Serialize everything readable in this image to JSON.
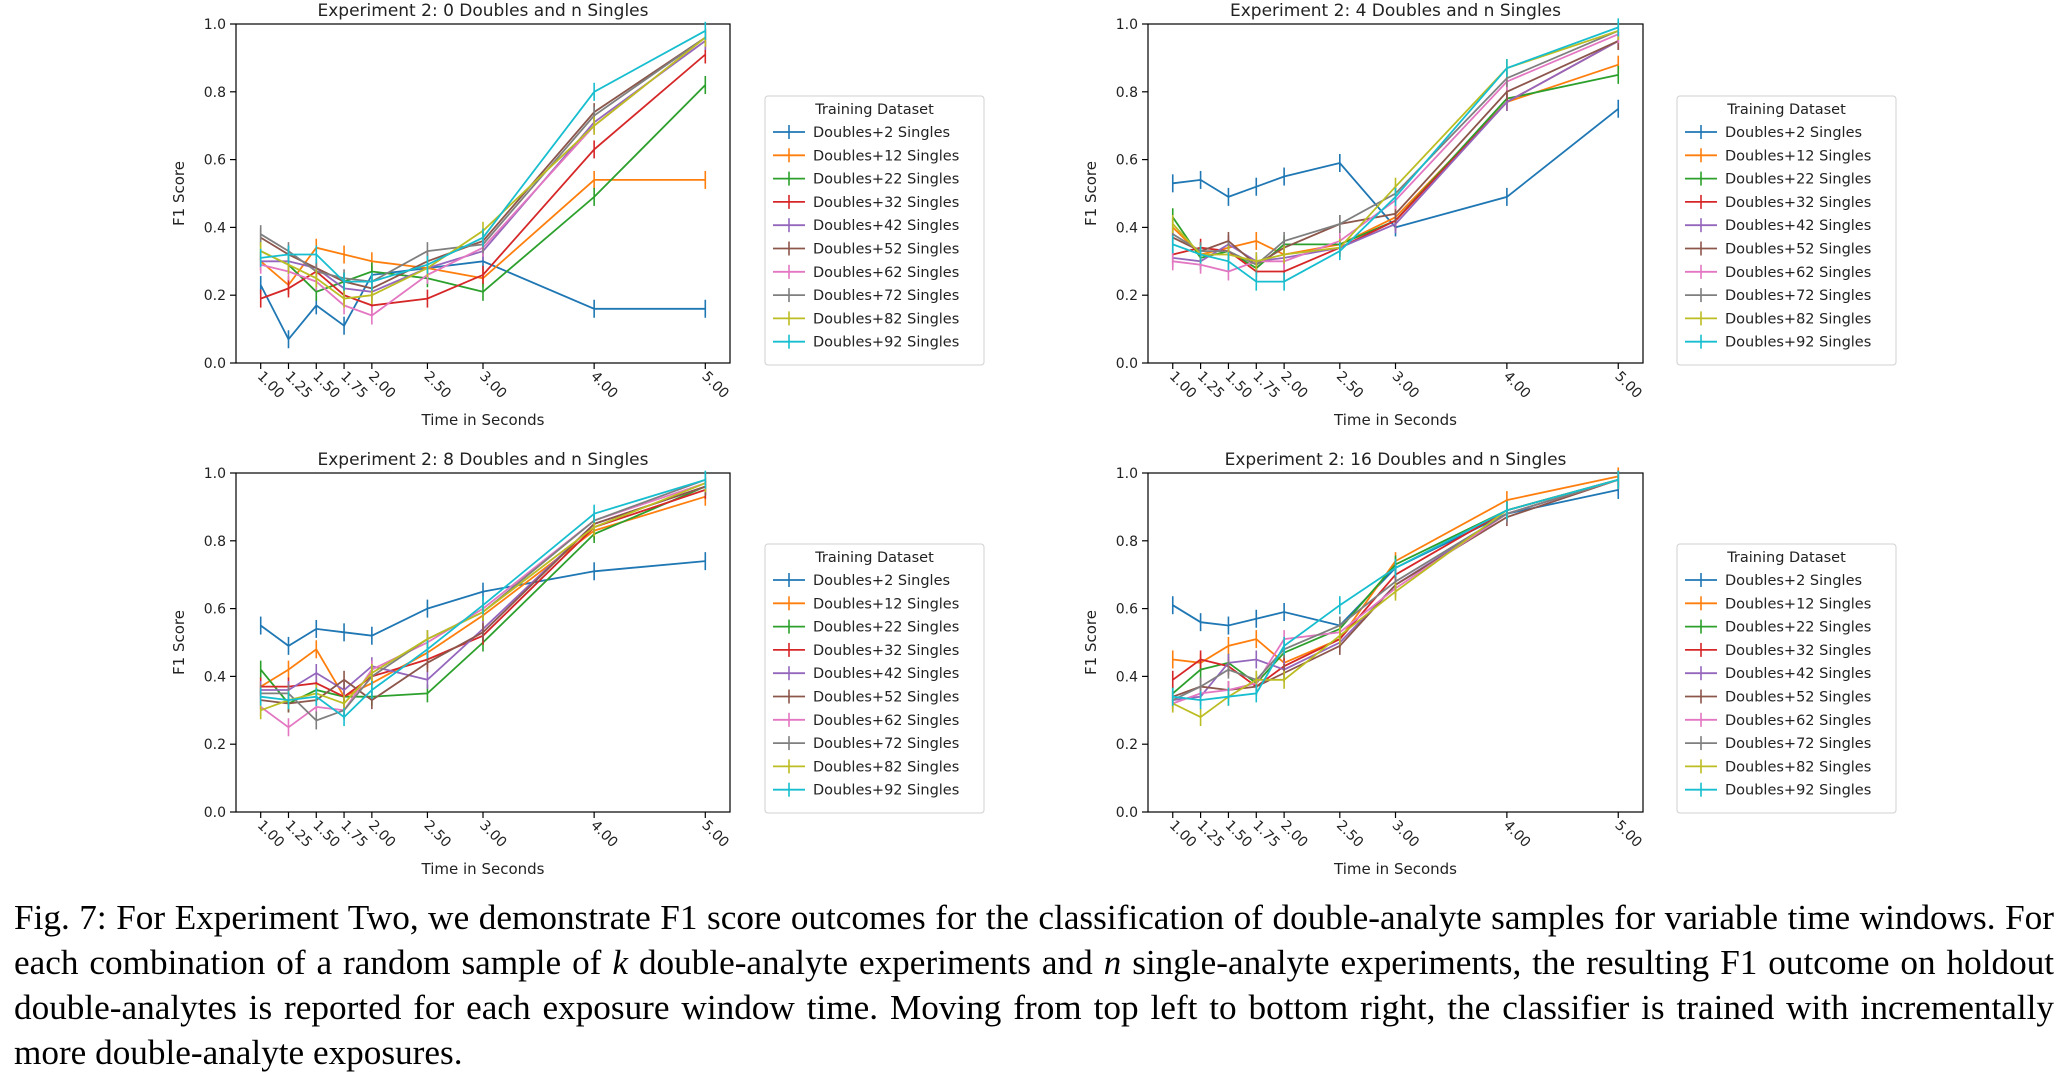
{
  "figure": {
    "caption_prefix": "Fig. 7: For Experiment Two, we demonstrate F1 score outcomes for the classification of double-analyte samples for variable time windows. For each combination of a random sample of",
    "caption_k": "k",
    "caption_mid": "double-analyte experiments and",
    "caption_n": "n",
    "caption_suffix": "single-analyte experiments, the resulting F1 outcome on holdout double-analytes is reported for each exposure window time. Moving from top left to bottom right, the classifier is trained with incrementally more double-analyte exposures."
  },
  "colors": [
    "#1f77b4",
    "#ff7f0e",
    "#2ca02c",
    "#d62728",
    "#9467bd",
    "#8c564b",
    "#e377c2",
    "#7f7f7f",
    "#bcbd22",
    "#17becf"
  ],
  "chart_data": [
    {
      "type": "line",
      "title": "Experiment 2: 0 Doubles and n Singles",
      "xlabel": "Time in Seconds",
      "ylabel": "F1 Score",
      "ylim": [
        0.0,
        1.0
      ],
      "grid": false,
      "legend_title": "Training Dataset",
      "legend_position": "outside-right",
      "x": [
        1.0,
        1.25,
        1.5,
        1.75,
        2.0,
        2.5,
        3.0,
        4.0,
        5.0
      ],
      "x_tick_labels": [
        "1.00",
        "1.25",
        "1.50",
        "1.75",
        "2.00",
        "2.50",
        "3.00",
        "4.00",
        "5.00"
      ],
      "y_tick_labels": [
        "0.0",
        "0.2",
        "0.4",
        "0.6",
        "0.8",
        "1.0"
      ],
      "series": [
        {
          "name": "Doubles+2 Singles",
          "values": [
            0.23,
            0.07,
            0.17,
            0.11,
            0.26,
            0.28,
            0.3,
            0.16,
            0.16
          ]
        },
        {
          "name": "Doubles+12 Singles",
          "values": [
            0.3,
            0.23,
            0.34,
            0.32,
            0.3,
            0.28,
            0.25,
            0.54,
            0.54
          ]
        },
        {
          "name": "Doubles+22 Singles",
          "values": [
            0.33,
            0.29,
            0.21,
            0.24,
            0.27,
            0.25,
            0.21,
            0.49,
            0.82
          ]
        },
        {
          "name": "Doubles+32 Singles",
          "values": [
            0.19,
            0.22,
            0.27,
            0.2,
            0.17,
            0.19,
            0.26,
            0.63,
            0.91
          ]
        },
        {
          "name": "Doubles+42 Singles",
          "values": [
            0.3,
            0.3,
            0.28,
            0.22,
            0.21,
            0.28,
            0.33,
            0.71,
            0.95
          ]
        },
        {
          "name": "Doubles+52 Singles",
          "values": [
            0.37,
            0.32,
            0.28,
            0.24,
            0.22,
            0.3,
            0.36,
            0.74,
            0.96
          ]
        },
        {
          "name": "Doubles+62 Singles",
          "values": [
            0.29,
            0.27,
            0.24,
            0.17,
            0.14,
            0.26,
            0.34,
            0.7,
            0.96
          ]
        },
        {
          "name": "Doubles+72 Singles",
          "values": [
            0.38,
            0.33,
            0.27,
            0.25,
            0.24,
            0.33,
            0.35,
            0.73,
            0.96
          ]
        },
        {
          "name": "Doubles+82 Singles",
          "values": [
            0.33,
            0.29,
            0.25,
            0.19,
            0.2,
            0.28,
            0.39,
            0.7,
            0.96
          ]
        },
        {
          "name": "Doubles+92 Singles",
          "values": [
            0.31,
            0.32,
            0.32,
            0.24,
            0.24,
            0.29,
            0.37,
            0.8,
            0.98
          ]
        }
      ]
    },
    {
      "type": "line",
      "title": "Experiment 2: 4 Doubles and n Singles",
      "xlabel": "Time in Seconds",
      "ylabel": "F1 Score",
      "ylim": [
        0.0,
        1.0
      ],
      "grid": false,
      "legend_title": "Training Dataset",
      "legend_position": "outside-right",
      "x": [
        1.0,
        1.25,
        1.5,
        1.75,
        2.0,
        2.5,
        3.0,
        4.0,
        5.0
      ],
      "x_tick_labels": [
        "1.00",
        "1.25",
        "1.50",
        "1.75",
        "2.00",
        "2.50",
        "3.00",
        "4.00",
        "5.00"
      ],
      "y_tick_labels": [
        "0.0",
        "0.2",
        "0.4",
        "0.6",
        "0.8",
        "1.0"
      ],
      "series": [
        {
          "name": "Doubles+2 Singles",
          "values": [
            0.53,
            0.54,
            0.49,
            0.52,
            0.55,
            0.59,
            0.4,
            0.49,
            0.75
          ]
        },
        {
          "name": "Doubles+12 Singles",
          "values": [
            0.4,
            0.32,
            0.34,
            0.36,
            0.32,
            0.35,
            0.43,
            0.77,
            0.88
          ]
        },
        {
          "name": "Doubles+22 Singles",
          "values": [
            0.43,
            0.31,
            0.33,
            0.28,
            0.35,
            0.35,
            0.42,
            0.78,
            0.85
          ]
        },
        {
          "name": "Doubles+32 Singles",
          "values": [
            0.32,
            0.34,
            0.33,
            0.27,
            0.27,
            0.34,
            0.42,
            0.77,
            0.95
          ]
        },
        {
          "name": "Doubles+42 Singles",
          "values": [
            0.31,
            0.3,
            0.35,
            0.3,
            0.31,
            0.34,
            0.41,
            0.77,
            0.95
          ]
        },
        {
          "name": "Doubles+52 Singles",
          "values": [
            0.37,
            0.33,
            0.36,
            0.29,
            0.34,
            0.41,
            0.44,
            0.8,
            0.95
          ]
        },
        {
          "name": "Doubles+62 Singles",
          "values": [
            0.3,
            0.29,
            0.27,
            0.3,
            0.3,
            0.36,
            0.48,
            0.83,
            0.97
          ]
        },
        {
          "name": "Doubles+72 Singles",
          "values": [
            0.38,
            0.33,
            0.33,
            0.29,
            0.36,
            0.41,
            0.5,
            0.84,
            0.98
          ]
        },
        {
          "name": "Doubles+82 Singles",
          "values": [
            0.41,
            0.32,
            0.32,
            0.3,
            0.32,
            0.34,
            0.52,
            0.87,
            0.98
          ]
        },
        {
          "name": "Doubles+92 Singles",
          "values": [
            0.35,
            0.32,
            0.3,
            0.24,
            0.24,
            0.33,
            0.49,
            0.87,
            0.99
          ]
        }
      ]
    },
    {
      "type": "line",
      "title": "Experiment 2: 8 Doubles and n Singles",
      "xlabel": "Time in Seconds",
      "ylabel": "F1 Score",
      "ylim": [
        0.0,
        1.0
      ],
      "grid": false,
      "legend_title": "Training Dataset",
      "legend_position": "outside-right",
      "x": [
        1.0,
        1.25,
        1.5,
        1.75,
        2.0,
        2.5,
        3.0,
        4.0,
        5.0
      ],
      "x_tick_labels": [
        "1.00",
        "1.25",
        "1.50",
        "1.75",
        "2.00",
        "2.50",
        "3.00",
        "4.00",
        "5.00"
      ],
      "y_tick_labels": [
        "0.0",
        "0.2",
        "0.4",
        "0.6",
        "0.8",
        "1.0"
      ],
      "series": [
        {
          "name": "Doubles+2 Singles",
          "values": [
            0.55,
            0.49,
            0.54,
            0.53,
            0.52,
            0.6,
            0.65,
            0.71,
            0.74
          ]
        },
        {
          "name": "Doubles+12 Singles",
          "values": [
            0.37,
            0.42,
            0.48,
            0.34,
            0.38,
            0.47,
            0.58,
            0.83,
            0.93
          ]
        },
        {
          "name": "Doubles+22 Singles",
          "values": [
            0.42,
            0.32,
            0.36,
            0.34,
            0.34,
            0.35,
            0.5,
            0.82,
            0.96
          ]
        },
        {
          "name": "Doubles+32 Singles",
          "values": [
            0.37,
            0.37,
            0.38,
            0.34,
            0.4,
            0.45,
            0.52,
            0.84,
            0.95
          ]
        },
        {
          "name": "Doubles+42 Singles",
          "values": [
            0.36,
            0.36,
            0.41,
            0.36,
            0.43,
            0.39,
            0.54,
            0.85,
            0.96
          ]
        },
        {
          "name": "Doubles+52 Singles",
          "values": [
            0.33,
            0.32,
            0.33,
            0.39,
            0.33,
            0.44,
            0.53,
            0.85,
            0.96
          ]
        },
        {
          "name": "Doubles+62 Singles",
          "values": [
            0.31,
            0.25,
            0.31,
            0.3,
            0.42,
            0.5,
            0.6,
            0.86,
            0.97
          ]
        },
        {
          "name": "Doubles+72 Singles",
          "values": [
            0.35,
            0.35,
            0.27,
            0.3,
            0.4,
            0.51,
            0.59,
            0.86,
            0.98
          ]
        },
        {
          "name": "Doubles+82 Singles",
          "values": [
            0.3,
            0.33,
            0.35,
            0.32,
            0.41,
            0.51,
            0.59,
            0.84,
            0.97
          ]
        },
        {
          "name": "Doubles+92 Singles",
          "values": [
            0.34,
            0.33,
            0.34,
            0.28,
            0.36,
            0.48,
            0.61,
            0.88,
            0.98
          ]
        }
      ]
    },
    {
      "type": "line",
      "title": "Experiment 2: 16 Doubles and n Singles",
      "xlabel": "Time in Seconds",
      "ylabel": "F1 Score",
      "ylim": [
        0.0,
        1.0
      ],
      "grid": false,
      "legend_title": "Training Dataset",
      "legend_position": "outside-right",
      "x": [
        1.0,
        1.25,
        1.5,
        1.75,
        2.0,
        2.5,
        3.0,
        4.0,
        5.0
      ],
      "x_tick_labels": [
        "1.00",
        "1.25",
        "1.50",
        "1.75",
        "2.00",
        "2.50",
        "3.00",
        "4.00",
        "5.00"
      ],
      "y_tick_labels": [
        "0.0",
        "0.2",
        "0.4",
        "0.6",
        "0.8",
        "1.0"
      ],
      "series": [
        {
          "name": "Doubles+2 Singles",
          "values": [
            0.61,
            0.56,
            0.55,
            0.57,
            0.59,
            0.55,
            0.72,
            0.88,
            0.95
          ]
        },
        {
          "name": "Doubles+12 Singles",
          "values": [
            0.45,
            0.44,
            0.49,
            0.51,
            0.44,
            0.51,
            0.74,
            0.92,
            0.99
          ]
        },
        {
          "name": "Doubles+22 Singles",
          "values": [
            0.35,
            0.42,
            0.44,
            0.38,
            0.47,
            0.54,
            0.73,
            0.89,
            0.98
          ]
        },
        {
          "name": "Doubles+32 Singles",
          "values": [
            0.39,
            0.45,
            0.43,
            0.37,
            0.43,
            0.51,
            0.7,
            0.89,
            0.98
          ]
        },
        {
          "name": "Doubles+42 Singles",
          "values": [
            0.33,
            0.34,
            0.44,
            0.45,
            0.42,
            0.5,
            0.67,
            0.88,
            0.98
          ]
        },
        {
          "name": "Doubles+52 Singles",
          "values": [
            0.34,
            0.37,
            0.36,
            0.37,
            0.41,
            0.49,
            0.67,
            0.87,
            0.98
          ]
        },
        {
          "name": "Doubles+62 Singles",
          "values": [
            0.32,
            0.35,
            0.36,
            0.38,
            0.51,
            0.53,
            0.66,
            0.88,
            0.98
          ]
        },
        {
          "name": "Doubles+72 Singles",
          "values": [
            0.33,
            0.37,
            0.42,
            0.39,
            0.48,
            0.55,
            0.68,
            0.88,
            0.98
          ]
        },
        {
          "name": "Doubles+82 Singles",
          "values": [
            0.32,
            0.28,
            0.34,
            0.39,
            0.39,
            0.52,
            0.65,
            0.89,
            0.98
          ]
        },
        {
          "name": "Doubles+92 Singles",
          "values": [
            0.34,
            0.33,
            0.34,
            0.35,
            0.49,
            0.61,
            0.72,
            0.89,
            0.98
          ]
        }
      ]
    }
  ]
}
